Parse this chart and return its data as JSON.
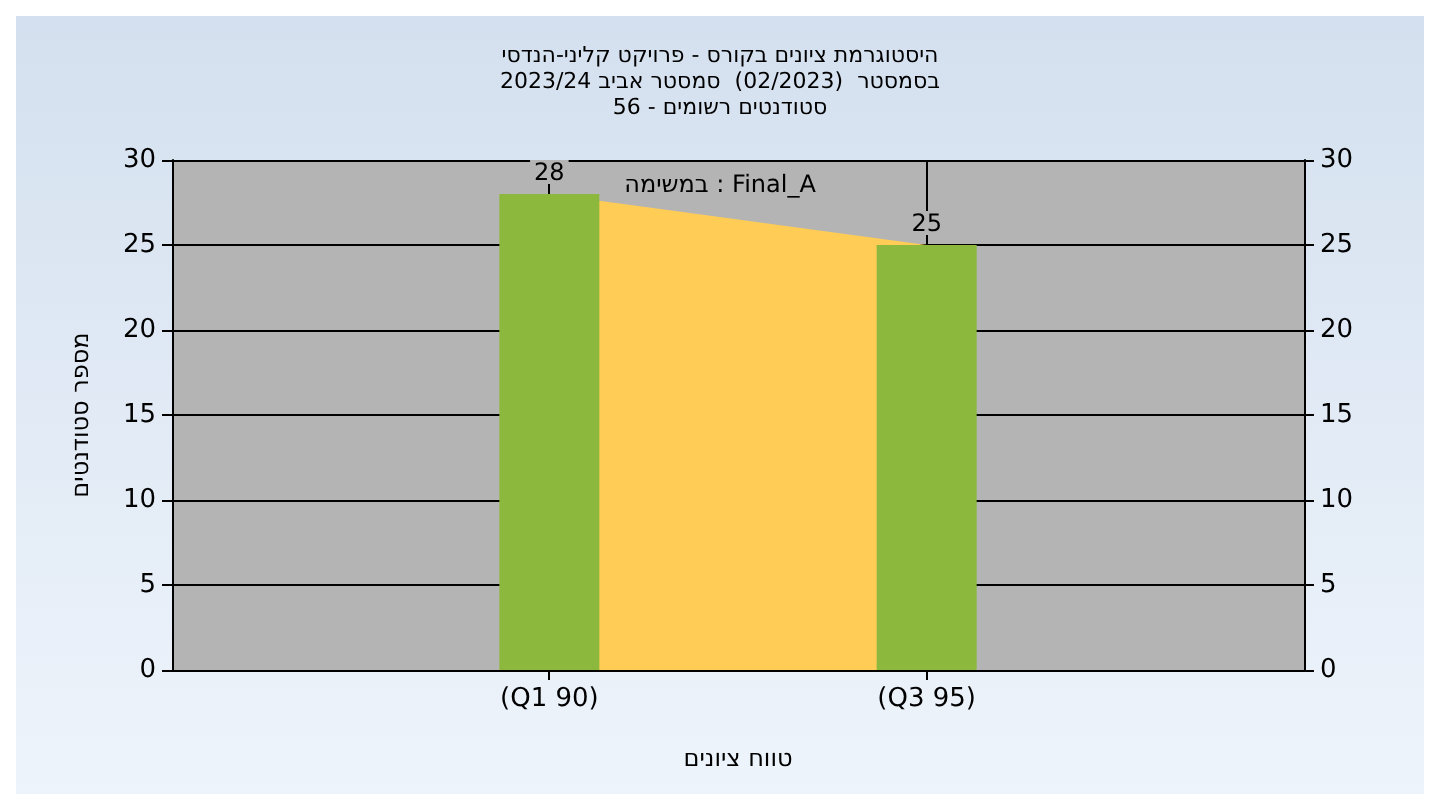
{
  "chart_data": {
    "type": "bar",
    "title": "היסטוגרמת ציונים בקורס - פרויקט קליני-הנדסי\nבסמסטר  (02/2023)  סמסטר אביב 2023/24\nסטודנטים רשומים - 56",
    "annotations": [
      "במשימה : Final_A"
    ],
    "xlabel": "טווח ציונים",
    "ylabel": "מספר סטודנטים",
    "categories": [
      null,
      "(Q1 90)",
      "(Q3 95)",
      null
    ],
    "series": [
      {
        "type": "area",
        "color": "#ffcc55",
        "values": [
          null,
          28,
          25,
          null
        ]
      },
      {
        "color": "#8db83e",
        "values": [
          null,
          28,
          25,
          null
        ],
        "value_labels": [
          null,
          "28",
          "25",
          null
        ]
      }
    ],
    "ylim": [
      0,
      30
    ],
    "yticks": [
      0,
      5,
      10,
      15,
      20,
      25,
      30
    ],
    "y2lim": [
      0,
      30
    ],
    "y2ticks": [
      0,
      5,
      10,
      15,
      20,
      25,
      30
    ],
    "grid": true
  }
}
